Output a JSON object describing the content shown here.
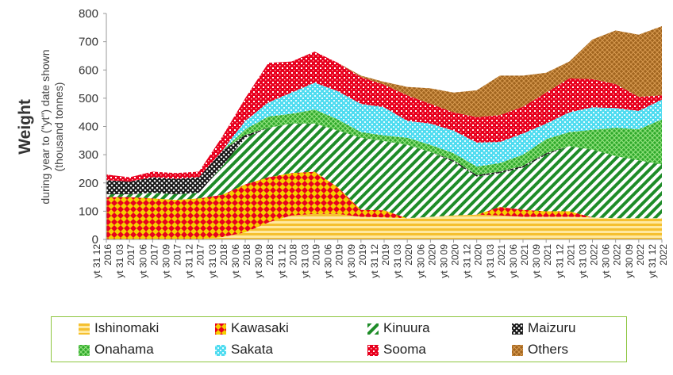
{
  "chart_data": {
    "type": "area",
    "stacked": true,
    "ylabel_main": "Weight",
    "ylabel_sub1": "during year to (\"yt\") date shown",
    "ylabel_sub2": "(thousand  tonnes)",
    "ylim": [
      0,
      800
    ],
    "yticks": [
      "0",
      "100",
      "200",
      "300",
      "400",
      "500",
      "600",
      "700",
      "800"
    ],
    "xtick_labels": [
      "yt 31 12 2016",
      "yt 31 03 2017",
      "yt 30 06 2017",
      "yt 30 09 2017",
      "yt 31 12 2017",
      "yt 31 03 2018",
      "yt 30 06 2018",
      "yt 30 09 2018",
      "yt 31 12 2018",
      "yt 31 03 2019",
      "yt 30 06 2019",
      "yt 30 09 2019",
      "yt 31 12 2019",
      "yt 31 03 2020",
      "yt 30 06 2020",
      "yt 30 09 2020",
      "yt 31 12 2020",
      "yt 31 03 2021",
      "yt 30 06 2021",
      "yt 30 09 2021",
      "yt 31 12 2021",
      "yt 31 03 2022",
      "yt 30 06 2022",
      "yt 30 09 2022",
      "yt 31 12 2022"
    ],
    "legend_position": "bottom",
    "grid": false,
    "series": [
      {
        "name": "Ishinomaki",
        "color": "#f5c030",
        "values": [
          0,
          0,
          0,
          0,
          0,
          8,
          25,
          60,
          85,
          90,
          90,
          80,
          78,
          75,
          80,
          85,
          88,
          85,
          80,
          80,
          80,
          78,
          75,
          75,
          75
        ]
      },
      {
        "name": "Kawasaki",
        "color": "#e8001e",
        "values": [
          150,
          150,
          145,
          140,
          145,
          150,
          170,
          160,
          150,
          150,
          95,
          25,
          25,
          0,
          0,
          0,
          0,
          30,
          25,
          20,
          20,
          0,
          0,
          0,
          0
        ]
      },
      {
        "name": "Kinuura",
        "color": "#1e8c28",
        "values": [
          10,
          10,
          20,
          20,
          20,
          100,
          165,
          175,
          175,
          170,
          200,
          255,
          245,
          260,
          230,
          190,
          135,
          120,
          150,
          200,
          230,
          240,
          220,
          205,
          190
        ]
      },
      {
        "name": "Maizuru",
        "color": "#111111",
        "values": [
          50,
          45,
          55,
          55,
          55,
          55,
          10,
          0,
          0,
          0,
          0,
          0,
          0,
          0,
          0,
          5,
          5,
          5,
          5,
          5,
          0,
          0,
          0,
          0,
          0
        ]
      },
      {
        "name": "Onahama",
        "color": "#3cbe32",
        "values": [
          0,
          0,
          0,
          0,
          0,
          0,
          20,
          40,
          35,
          50,
          40,
          20,
          20,
          25,
          25,
          25,
          30,
          30,
          40,
          50,
          50,
          70,
          100,
          110,
          160
        ]
      },
      {
        "name": "Sakata",
        "color": "#50dcf0",
        "values": [
          0,
          0,
          0,
          0,
          0,
          0,
          30,
          50,
          75,
          95,
          100,
          100,
          100,
          60,
          75,
          80,
          85,
          75,
          75,
          55,
          70,
          80,
          70,
          65,
          70
        ]
      },
      {
        "name": "Sooma",
        "color": "#e8001e",
        "values": [
          20,
          15,
          20,
          20,
          20,
          50,
          80,
          140,
          110,
          110,
          100,
          95,
          80,
          90,
          70,
          65,
          90,
          95,
          95,
          110,
          120,
          100,
          85,
          50,
          15
        ]
      },
      {
        "name": "Others",
        "color": "#a0641e",
        "values": [
          0,
          0,
          0,
          0,
          0,
          0,
          0,
          0,
          0,
          0,
          0,
          5,
          10,
          30,
          55,
          70,
          95,
          140,
          110,
          70,
          60,
          140,
          190,
          220,
          245
        ]
      }
    ]
  }
}
